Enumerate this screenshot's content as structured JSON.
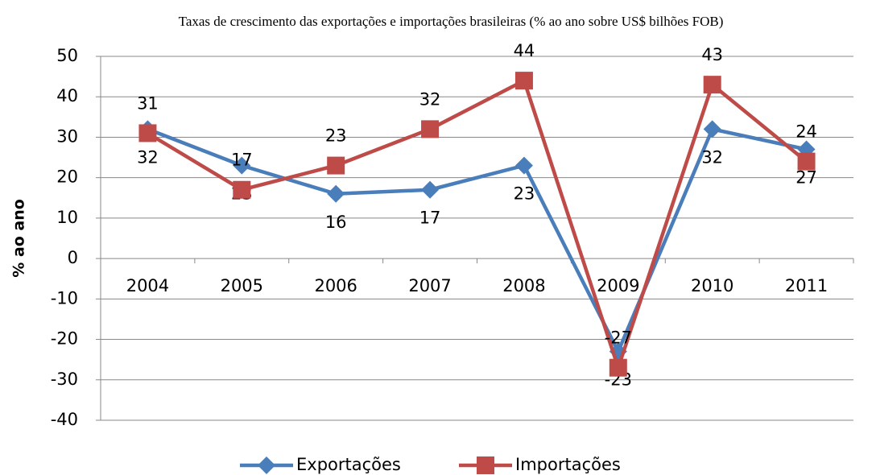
{
  "chart_data": {
    "type": "line",
    "title": "Taxas de crescimento das exportações e importações brasileiras (% ao ano sobre US$ bilhões FOB)",
    "y_label": "% ao ano",
    "categories": [
      "2004",
      "2005",
      "2006",
      "2007",
      "2008",
      "2009",
      "2010",
      "2011"
    ],
    "series": [
      {
        "name": "Exportações",
        "color": "#4a7ebb",
        "marker": "diamond",
        "values": [
          32,
          23,
          16,
          17,
          23,
          -23,
          32,
          27
        ]
      },
      {
        "name": "Importações",
        "color": "#be4b48",
        "marker": "square",
        "values": [
          31,
          17,
          23,
          32,
          44,
          -27,
          43,
          24
        ]
      }
    ],
    "ylim": [
      -40,
      50
    ],
    "yticks": [
      -40,
      -30,
      -20,
      -10,
      0,
      10,
      20,
      30,
      40,
      50
    ],
    "grid": true,
    "legend": "bottom"
  }
}
